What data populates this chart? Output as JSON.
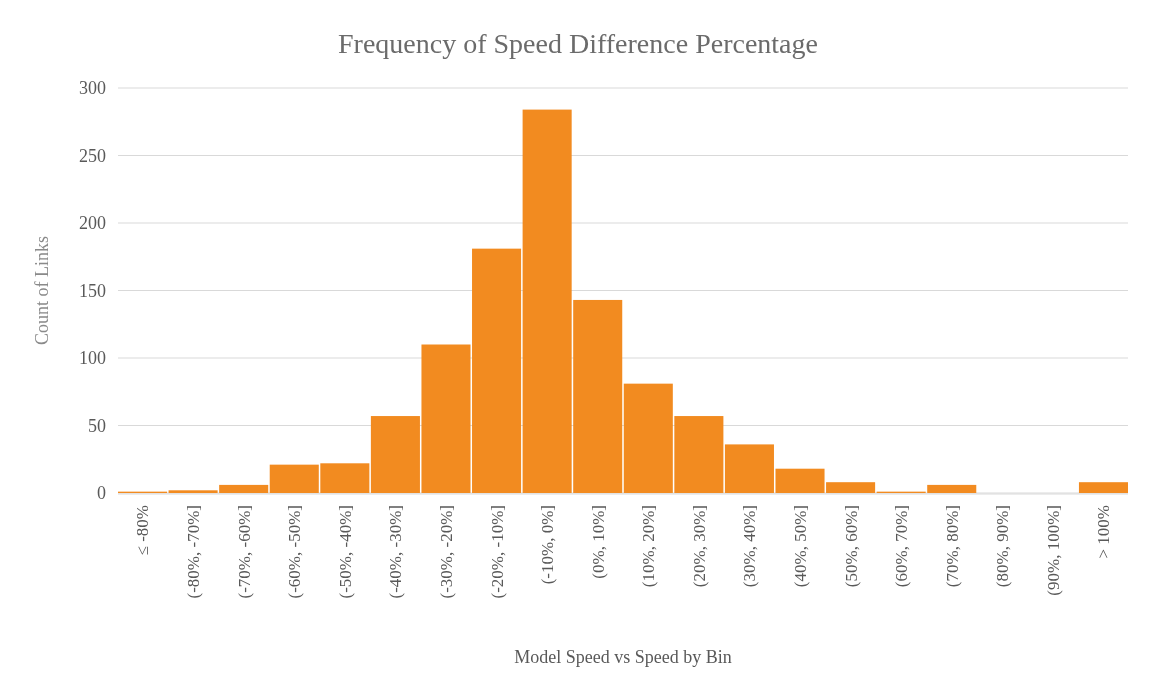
{
  "chart_data": {
    "type": "bar",
    "title": "Frequency of Speed Difference Percentage",
    "xlabel": "Model Speed vs Speed by Bin",
    "ylabel": "Count of Links",
    "categories": [
      "≤ -80%",
      "(-80%, -70%]",
      "(-70%, -60%]",
      "(-60%, -50%]",
      "(-50%, -40%]",
      "(-40%, -30%]",
      "(-30%, -20%]",
      "(-20%, -10%]",
      "(-10%, 0%]",
      "(0%, 10%]",
      "(10%, 20%]",
      "(20%, 30%]",
      "(30%, 40%]",
      "(40%, 50%]",
      "(50%, 60%]",
      "(60%, 70%]",
      "(70%, 80%]",
      "(80%, 90%]",
      "(90%, 100%]",
      "> 100%"
    ],
    "values": [
      1,
      2,
      6,
      21,
      22,
      57,
      110,
      181,
      284,
      143,
      81,
      57,
      36,
      18,
      8,
      1,
      6,
      0,
      0,
      8
    ],
    "color": "#f28b20",
    "ylim": [
      0,
      300
    ],
    "yticks": [
      0,
      50,
      100,
      150,
      200,
      250,
      300
    ],
    "grid": "y"
  }
}
